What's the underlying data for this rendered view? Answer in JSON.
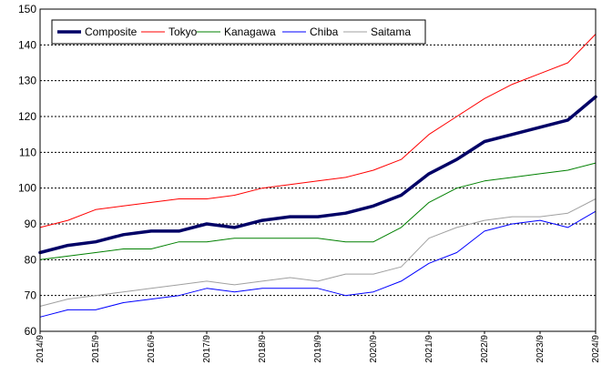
{
  "chart_data": {
    "type": "line",
    "title": "",
    "xlabel": "",
    "ylabel": "",
    "ylim": [
      60,
      150
    ],
    "y_ticks": [
      "60",
      "70",
      "80",
      "90",
      "100",
      "110",
      "120",
      "130",
      "140",
      "150"
    ],
    "x_tick_labels": [
      "2014/9",
      "2015/9",
      "2016/9",
      "2017/9",
      "2018/9",
      "2019/9",
      "2020/9",
      "2021/9",
      "2022/9",
      "2023/9",
      "2024/9"
    ],
    "grid": "horizontal dashed",
    "legend_position": "top-left",
    "series_styles": {
      "Composite": {
        "color": "#000066",
        "width": 3.5
      },
      "Tokyo": {
        "color": "#ff0000",
        "width": 1
      },
      "Kanagawa": {
        "color": "#008000",
        "width": 1
      },
      "Chiba": {
        "color": "#0000ff",
        "width": 1
      },
      "Saitama": {
        "color": "#a0a0a0",
        "width": 1
      }
    },
    "x": [
      "2014/9",
      "2015/3",
      "2015/9",
      "2016/3",
      "2016/9",
      "2017/3",
      "2017/9",
      "2018/3",
      "2018/9",
      "2019/3",
      "2019/9",
      "2020/3",
      "2020/9",
      "2021/3",
      "2021/9",
      "2022/3",
      "2022/9",
      "2023/3",
      "2023/9",
      "2024/3",
      "2024/9"
    ],
    "series": [
      {
        "name": "Composite",
        "values": [
          82,
          84,
          85,
          87,
          88,
          88,
          90,
          89,
          91,
          92,
          92,
          93,
          95,
          98,
          104,
          108,
          113,
          115,
          117,
          119,
          125.5
        ]
      },
      {
        "name": "Tokyo",
        "values": [
          89,
          91,
          94,
          95,
          96,
          97,
          97,
          98,
          100,
          101,
          102,
          103,
          105,
          108,
          115,
          120,
          125,
          129,
          132,
          135,
          143
        ]
      },
      {
        "name": "Kanagawa",
        "values": [
          80,
          81,
          82,
          83,
          83,
          85,
          85,
          86,
          86,
          86,
          86,
          85,
          85,
          89,
          96,
          100,
          102,
          103,
          104,
          105,
          107
        ]
      },
      {
        "name": "Chiba",
        "values": [
          64,
          66,
          66,
          68,
          69,
          70,
          72,
          71,
          72,
          72,
          72,
          70,
          71,
          74,
          79,
          82,
          88,
          90,
          91,
          89,
          93.5
        ]
      },
      {
        "name": "Saitama",
        "values": [
          67,
          69,
          70,
          71,
          72,
          73,
          74,
          73,
          74,
          75,
          74,
          76,
          76,
          78,
          86,
          89,
          91,
          92,
          92,
          93,
          97
        ]
      }
    ]
  }
}
